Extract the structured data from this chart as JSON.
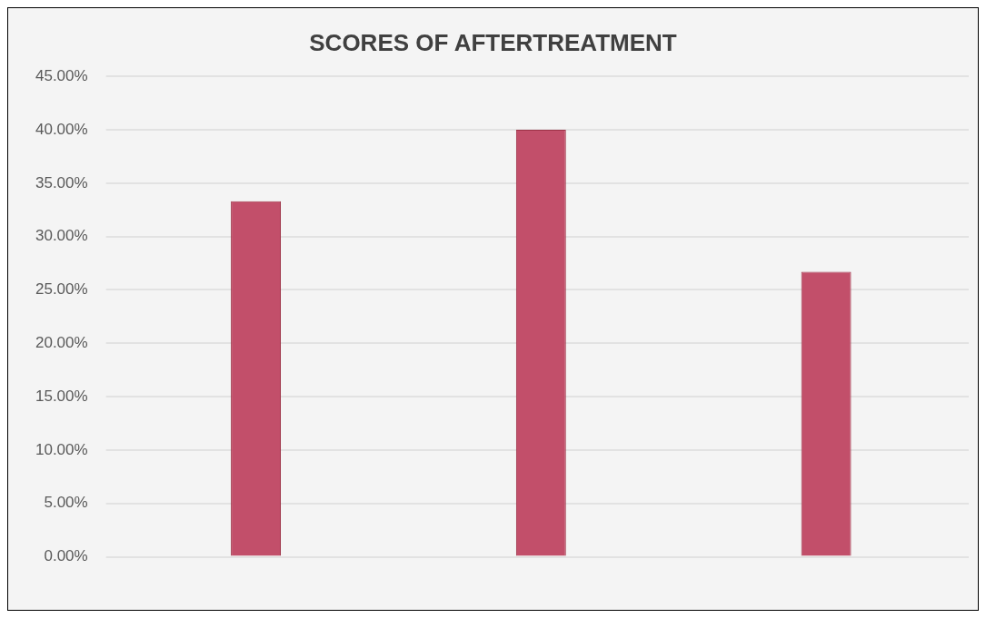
{
  "chart_data": {
    "type": "bar",
    "title": "SCORES OF AFTERTREATMENT",
    "categories": [
      null,
      null,
      null
    ],
    "values": [
      33.3,
      40.0,
      26.7
    ],
    "color": "#c24f6a",
    "ylim": [
      0,
      45
    ],
    "yticks": [
      {
        "value": 0,
        "label": "0.00%"
      },
      {
        "value": 5,
        "label": "5.00%"
      },
      {
        "value": 10,
        "label": "10.00%"
      },
      {
        "value": 15,
        "label": "15.00%"
      },
      {
        "value": 20,
        "label": "20.00%"
      },
      {
        "value": 25,
        "label": "25.00%"
      },
      {
        "value": 30,
        "label": "30.00%"
      },
      {
        "value": 35,
        "label": "35.00%"
      },
      {
        "value": 40,
        "label": "40.00%"
      },
      {
        "value": 45,
        "label": "45.00%"
      }
    ],
    "grid": "y"
  }
}
